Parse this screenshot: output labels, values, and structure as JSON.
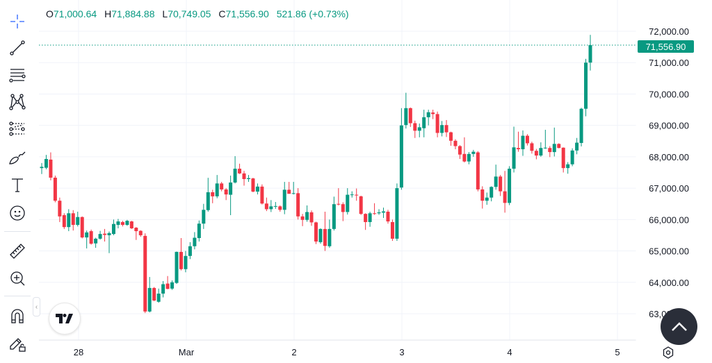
{
  "legend": {
    "open_label": "O",
    "open": "71,000.64",
    "high_label": "H",
    "high": "71,884.88",
    "low_label": "L",
    "low": "70,749.05",
    "close_label": "C",
    "close": "71,556.90",
    "change": "521.86 (+0.73%)"
  },
  "toolbar": {
    "items": [
      "crosshair-icon",
      "trend-line-icon",
      "horizontal-lines-icon",
      "pattern-icon",
      "fib-retracement-icon",
      "brush-icon",
      "text-icon",
      "emoji-icon",
      "ruler-icon",
      "zoom-in-icon",
      "magnet-icon",
      "lock-drawing-icon"
    ]
  },
  "last_price_label": "71,556.90",
  "colors": {
    "up": "#089981",
    "down": "#f23645",
    "grid": "#f0f3fa",
    "scroll_button": "#2a2e39"
  },
  "chart_data": {
    "type": "candlestick",
    "title": "",
    "xlabel": "",
    "ylabel": "",
    "interval_note": "",
    "ylim": [
      62700,
      72600
    ],
    "grid": true,
    "y_ticks": [
      72000,
      71000,
      70000,
      69000,
      68000,
      67000,
      66000,
      65000,
      64000,
      63000
    ],
    "y_tick_labels": [
      "72,000.00",
      "71,000.00",
      "70,000.00",
      "69,000.00",
      "68,000.00",
      "67,000.00",
      "66,000.00",
      "65,000.00",
      "64,000.00",
      "63,000.00"
    ],
    "x_tick_labels": [
      "28",
      "Mar",
      "2",
      "3",
      "4",
      "5"
    ],
    "last_price": 71556.9,
    "candles_ohlc": [
      [
        67640,
        67800,
        67450,
        67680
      ],
      [
        67650,
        68060,
        67600,
        67930
      ],
      [
        67910,
        68140,
        67250,
        67335
      ],
      [
        67335,
        67400,
        66550,
        66600
      ],
      [
        66600,
        66700,
        65920,
        66100
      ],
      [
        66140,
        66200,
        65700,
        65760
      ],
      [
        65760,
        66330,
        65630,
        66200
      ],
      [
        66200,
        66300,
        65650,
        65830
      ],
      [
        65830,
        66250,
        65780,
        66080
      ],
      [
        66080,
        66100,
        65400,
        65430
      ],
      [
        65430,
        65650,
        65080,
        65590
      ],
      [
        65630,
        65680,
        65200,
        65230
      ],
      [
        65240,
        65420,
        65100,
        65390
      ],
      [
        65390,
        65640,
        65360,
        65540
      ],
      [
        65550,
        65700,
        65300,
        65510
      ],
      [
        65500,
        65620,
        64930,
        65570
      ],
      [
        65540,
        66000,
        65500,
        65860
      ],
      [
        65830,
        66020,
        65720,
        65940
      ],
      [
        65920,
        65960,
        65780,
        65830
      ],
      [
        65830,
        65990,
        65800,
        65960
      ],
      [
        65940,
        65960,
        65700,
        65720
      ],
      [
        65740,
        65760,
        65350,
        65630
      ],
      [
        65640,
        65660,
        65450,
        65500
      ],
      [
        65480,
        65560,
        63020,
        63070
      ],
      [
        63070,
        64170,
        63040,
        63820
      ],
      [
        63820,
        63850,
        63400,
        63420
      ],
      [
        63380,
        63800,
        63350,
        63640
      ],
      [
        63640,
        64040,
        63520,
        63940
      ],
      [
        63960,
        64200,
        63780,
        63790
      ],
      [
        63800,
        64060,
        63760,
        64000
      ],
      [
        63980,
        64980,
        63950,
        64970
      ],
      [
        64970,
        65410,
        64380,
        64420
      ],
      [
        64420,
        65000,
        64320,
        64840
      ],
      [
        64840,
        65280,
        64740,
        65150
      ],
      [
        65150,
        65600,
        65050,
        65420
      ],
      [
        65410,
        65970,
        65300,
        65870
      ],
      [
        65870,
        66500,
        65700,
        66310
      ],
      [
        66300,
        67330,
        66250,
        66870
      ],
      [
        66870,
        66950,
        66520,
        66740
      ],
      [
        66740,
        67420,
        66680,
        67150
      ],
      [
        67150,
        67200,
        66900,
        66960
      ],
      [
        66960,
        67000,
        66620,
        66800
      ],
      [
        66790,
        67400,
        66140,
        67180
      ],
      [
        67180,
        68020,
        67150,
        67620
      ],
      [
        67620,
        67780,
        67450,
        67470
      ],
      [
        67470,
        67550,
        67080,
        67290
      ],
      [
        67290,
        67420,
        67200,
        67320
      ],
      [
        67310,
        67330,
        66870,
        66890
      ],
      [
        66890,
        67150,
        66800,
        67050
      ],
      [
        67050,
        67120,
        66480,
        66510
      ],
      [
        66510,
        66700,
        66270,
        66330
      ],
      [
        66330,
        66620,
        66240,
        66420
      ],
      [
        66420,
        66560,
        66340,
        66430
      ],
      [
        66420,
        66450,
        66250,
        66310
      ],
      [
        66310,
        67200,
        66170,
        66950
      ],
      [
        66950,
        67200,
        66850,
        66820
      ],
      [
        66820,
        67200,
        66800,
        66840
      ],
      [
        66840,
        67000,
        66000,
        66100
      ],
      [
        66100,
        66180,
        65790,
        65990
      ],
      [
        65990,
        66450,
        65930,
        66240
      ],
      [
        66230,
        66290,
        65800,
        65910
      ],
      [
        65910,
        65930,
        65220,
        65300
      ],
      [
        65280,
        65720,
        65230,
        65700
      ],
      [
        65700,
        66250,
        65000,
        65160
      ],
      [
        65150,
        66000,
        65100,
        65700
      ],
      [
        65700,
        66730,
        65650,
        66490
      ],
      [
        66500,
        67000,
        66450,
        66480
      ],
      [
        66490,
        66550,
        65950,
        66240
      ],
      [
        66240,
        67000,
        66160,
        66790
      ],
      [
        66780,
        66900,
        66700,
        66800
      ],
      [
        66790,
        66990,
        66600,
        66770
      ],
      [
        66740,
        66760,
        66150,
        66180
      ],
      [
        66180,
        66200,
        65670,
        65920
      ],
      [
        65920,
        66250,
        65770,
        66200
      ],
      [
        66200,
        66520,
        66150,
        66180
      ],
      [
        66200,
        66330,
        66150,
        66230
      ],
      [
        66220,
        66380,
        66050,
        66260
      ],
      [
        66250,
        66310,
        65870,
        65940
      ],
      [
        65920,
        66000,
        65320,
        65390
      ],
      [
        65390,
        67150,
        65320,
        67000
      ],
      [
        67020,
        69550,
        66950,
        69000
      ],
      [
        69010,
        70040,
        68900,
        69550
      ],
      [
        69550,
        69570,
        68950,
        69070
      ],
      [
        69070,
        69150,
        68600,
        68830
      ],
      [
        68830,
        69060,
        68620,
        68940
      ],
      [
        68910,
        69500,
        68620,
        69260
      ],
      [
        69260,
        69500,
        69000,
        69420
      ],
      [
        69410,
        69500,
        69200,
        69360
      ],
      [
        69360,
        69440,
        68620,
        68760
      ],
      [
        68760,
        69140,
        68650,
        69010
      ],
      [
        69010,
        69170,
        68630,
        68780
      ],
      [
        68780,
        68800,
        68350,
        68510
      ],
      [
        68510,
        68560,
        68240,
        68340
      ],
      [
        68340,
        68370,
        67930,
        68070
      ],
      [
        68090,
        68620,
        67820,
        67850
      ],
      [
        67850,
        68150,
        67760,
        68090
      ],
      [
        68090,
        68220,
        68000,
        68160
      ],
      [
        68140,
        68180,
        66900,
        66960
      ],
      [
        66960,
        67060,
        66350,
        66600
      ],
      [
        66600,
        66860,
        66470,
        66700
      ],
      [
        66700,
        67060,
        66580,
        67040
      ],
      [
        67040,
        67750,
        66950,
        67370
      ],
      [
        67370,
        67420,
        66750,
        66900
      ],
      [
        66900,
        67550,
        66220,
        66530
      ],
      [
        66530,
        67700,
        66460,
        67620
      ],
      [
        67620,
        68960,
        67500,
        68300
      ],
      [
        68280,
        68800,
        68160,
        68240
      ],
      [
        68240,
        68840,
        68030,
        68670
      ],
      [
        68670,
        68720,
        68360,
        68430
      ],
      [
        68430,
        68480,
        68100,
        68190
      ],
      [
        68190,
        68250,
        67920,
        68040
      ],
      [
        68040,
        68460,
        68000,
        68280
      ],
      [
        68280,
        68860,
        68250,
        68290
      ],
      [
        68280,
        68340,
        67990,
        68150
      ],
      [
        68150,
        68930,
        68010,
        68410
      ],
      [
        68410,
        68430,
        68270,
        68280
      ],
      [
        68290,
        68300,
        67500,
        67640
      ],
      [
        67640,
        67830,
        67460,
        67760
      ],
      [
        67760,
        68270,
        67700,
        68200
      ],
      [
        68200,
        68600,
        68080,
        68450
      ],
      [
        68440,
        69560,
        68330,
        69530
      ],
      [
        69530,
        71120,
        69290,
        71000
      ],
      [
        71000.64,
        71884.88,
        70749.05,
        71556.9
      ]
    ]
  }
}
